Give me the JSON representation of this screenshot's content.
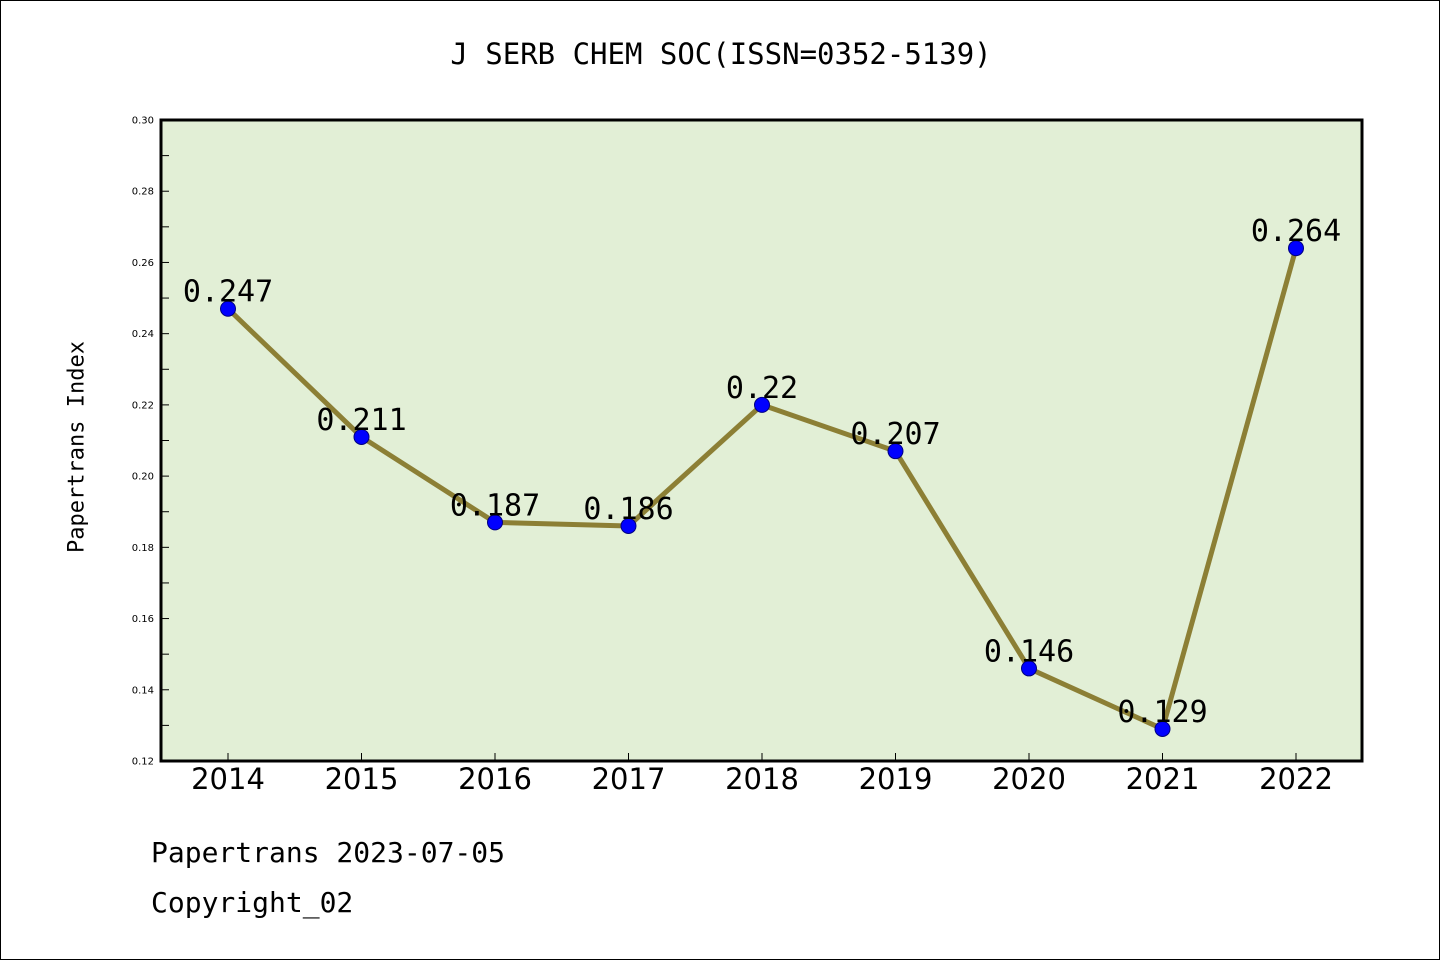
{
  "chart_data": {
    "type": "line",
    "title": "J SERB CHEM SOC(ISSN=0352-5139)",
    "xlabel": "",
    "ylabel": "Papertrans Index",
    "categories": [
      "2014",
      "2015",
      "2016",
      "2017",
      "2018",
      "2019",
      "2020",
      "2021",
      "2022"
    ],
    "values": [
      0.247,
      0.211,
      0.187,
      0.186,
      0.22,
      0.207,
      0.146,
      0.129,
      0.264
    ],
    "data_labels": [
      "0.247",
      "0.211",
      "0.187",
      "0.186",
      "0.22",
      "0.207",
      "0.146",
      "0.129",
      "0.264"
    ],
    "ylim": [
      0.12,
      0.3
    ],
    "yticks": [
      0.12,
      0.14,
      0.16,
      0.18,
      0.2,
      0.22,
      0.24,
      0.26,
      0.28,
      0.3
    ],
    "ytick_labels": [
      "0.12",
      "0.14",
      "0.16",
      "0.18",
      "0.20",
      "0.22",
      "0.24",
      "0.26",
      "0.28",
      "0.30"
    ],
    "grid": false,
    "legend": "none",
    "colors": {
      "plot_background": "#e2efd6",
      "line": "#8c7f35",
      "marker": "#0000ff",
      "axes": "#000000"
    }
  },
  "footer": {
    "source": "Papertrans 2023-07-05",
    "copyright": "Copyright_02"
  }
}
